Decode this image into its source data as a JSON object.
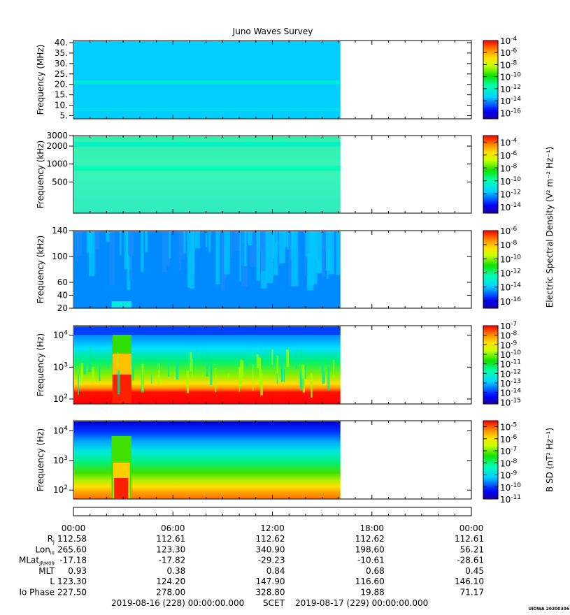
{
  "title": "Juno Waves Survey",
  "watermark": "UIOWA 20200306",
  "colorbar_shared_label": "Electric Spectral Density (V² m⁻² Hz⁻¹)",
  "colorbar_b_label": "B SD (nT² Hz⁻¹)",
  "chart_data": [
    {
      "type": "heatmap",
      "id": "panel-1",
      "ylabel": "Frequency (MHz)",
      "yscale": "linear",
      "ylim": [
        3.5,
        41
      ],
      "yticks": [
        "40.",
        "35.",
        "30.",
        "25.",
        "20.",
        "15.",
        "10.",
        "5."
      ],
      "ytick_values": [
        40,
        35,
        30,
        25,
        20,
        15,
        10,
        5
      ],
      "data_end_hour": 16.1,
      "colorbar_ticks": [
        "10^-4",
        "10^-6",
        "10^-8",
        "10^-10",
        "10^-12",
        "10^-14",
        "10^-16"
      ],
      "colorbar_range": [
        -17,
        -4
      ],
      "background_level": -13.4,
      "bands": [
        {
          "y": 21,
          "level": -12.2
        },
        {
          "y": 8,
          "level": -13.0
        }
      ]
    },
    {
      "type": "heatmap",
      "id": "panel-2",
      "ylabel": "Frequency (kHz)",
      "yscale": "log",
      "ylim": [
        150,
        3000
      ],
      "yticks": [
        "3000",
        "2000",
        "1000",
        "500"
      ],
      "ytick_values": [
        3000,
        2000,
        1000,
        500
      ],
      "data_end_hour": 16.1,
      "colorbar_ticks": [
        "10^-4",
        "10^-6",
        "10^-8",
        "10^-10",
        "10^-12",
        "10^-14"
      ],
      "colorbar_range": [
        -15,
        -3
      ],
      "background_level": -11.6,
      "bands": [
        {
          "y": 2150,
          "level": -10.4
        },
        {
          "y": 850,
          "level": -10.0
        }
      ]
    },
    {
      "type": "heatmap",
      "id": "panel-3",
      "ylabel": "Frequency (kHz)",
      "yscale": "linear",
      "ylim": [
        20,
        140
      ],
      "yticks": [
        "140",
        "100",
        "60",
        "40",
        "20"
      ],
      "ytick_values": [
        140,
        100,
        60,
        40,
        20
      ],
      "data_end_hour": 16.1,
      "colorbar_ticks": [
        "10^-6",
        "10^-8",
        "10^-10",
        "10^-12",
        "10^-14",
        "10^-16"
      ],
      "colorbar_range": [
        -17,
        -6
      ],
      "background_level": -14.6,
      "bands": []
    },
    {
      "type": "heatmap",
      "id": "panel-4",
      "ylabel": "Frequency (Hz)",
      "yscale": "log",
      "ylim": [
        70,
        20000
      ],
      "yticks": [
        "10^4",
        "10^3",
        "10^2"
      ],
      "ytick_values": [
        10000,
        1000,
        100
      ],
      "data_end_hour": 16.1,
      "colorbar_ticks": [
        "10^-7",
        "10^-8",
        "10^-9",
        "10^-10",
        "10^-11",
        "10^-12",
        "10^-13",
        "10^-14",
        "10^-15"
      ],
      "colorbar_range": [
        -15.2,
        -7
      ],
      "background_level": -11,
      "bands": []
    },
    {
      "type": "heatmap",
      "id": "panel-5",
      "ylabel": "Frequency (Hz)",
      "yscale": "log",
      "ylim": [
        50,
        22000
      ],
      "yticks": [
        "10^4",
        "10^3",
        "10^2"
      ],
      "ytick_values": [
        10000,
        1000,
        100
      ],
      "data_end_hour": 16.1,
      "colorbar_ticks": [
        "10^-5",
        "10^-6",
        "10^-7",
        "10^-8",
        "10^-9",
        "10^-10",
        "10^-11"
      ],
      "colorbar_range": [
        -11,
        -4.5
      ],
      "background_level": -8,
      "bands": []
    }
  ],
  "x_axis": {
    "xlim_hours": [
      0,
      24
    ],
    "ticks": [
      "00:00",
      "06:00",
      "12:00",
      "18:00",
      "00:00"
    ],
    "tick_hours": [
      0,
      6,
      12,
      18,
      24
    ]
  },
  "ephemeris": {
    "row_labels": [
      {
        "main": "R",
        "sub": "J"
      },
      {
        "main": "Lon",
        "sub": "III"
      },
      {
        "main": "MLat",
        "sub": "JRM09"
      },
      {
        "main": "MLT",
        "sub": ""
      },
      {
        "main": "L",
        "sub": ""
      },
      {
        "main": "Io Phase",
        "sub": ""
      }
    ],
    "rows": [
      [
        "112.58",
        "112.61",
        "112.62",
        "112.62",
        "112.61"
      ],
      [
        "265.60",
        "123.30",
        "340.90",
        "198.60",
        "56.21"
      ],
      [
        "-17.18",
        "-17.82",
        "-29.23",
        "-10.61",
        "-28.61"
      ],
      [
        "0.93",
        "0.38",
        "0.84",
        "0.68",
        "0.45"
      ],
      [
        "123.30",
        "124.20",
        "147.90",
        "116.60",
        "146.10"
      ],
      [
        "227.50",
        "278.00",
        "328.80",
        "19.88",
        "71.17"
      ]
    ]
  },
  "footer": {
    "start": "2019-08-16 (228) 00:00:00.000",
    "scet": "SCET",
    "end": "2019-08-17 (229) 00:00:00.000"
  }
}
